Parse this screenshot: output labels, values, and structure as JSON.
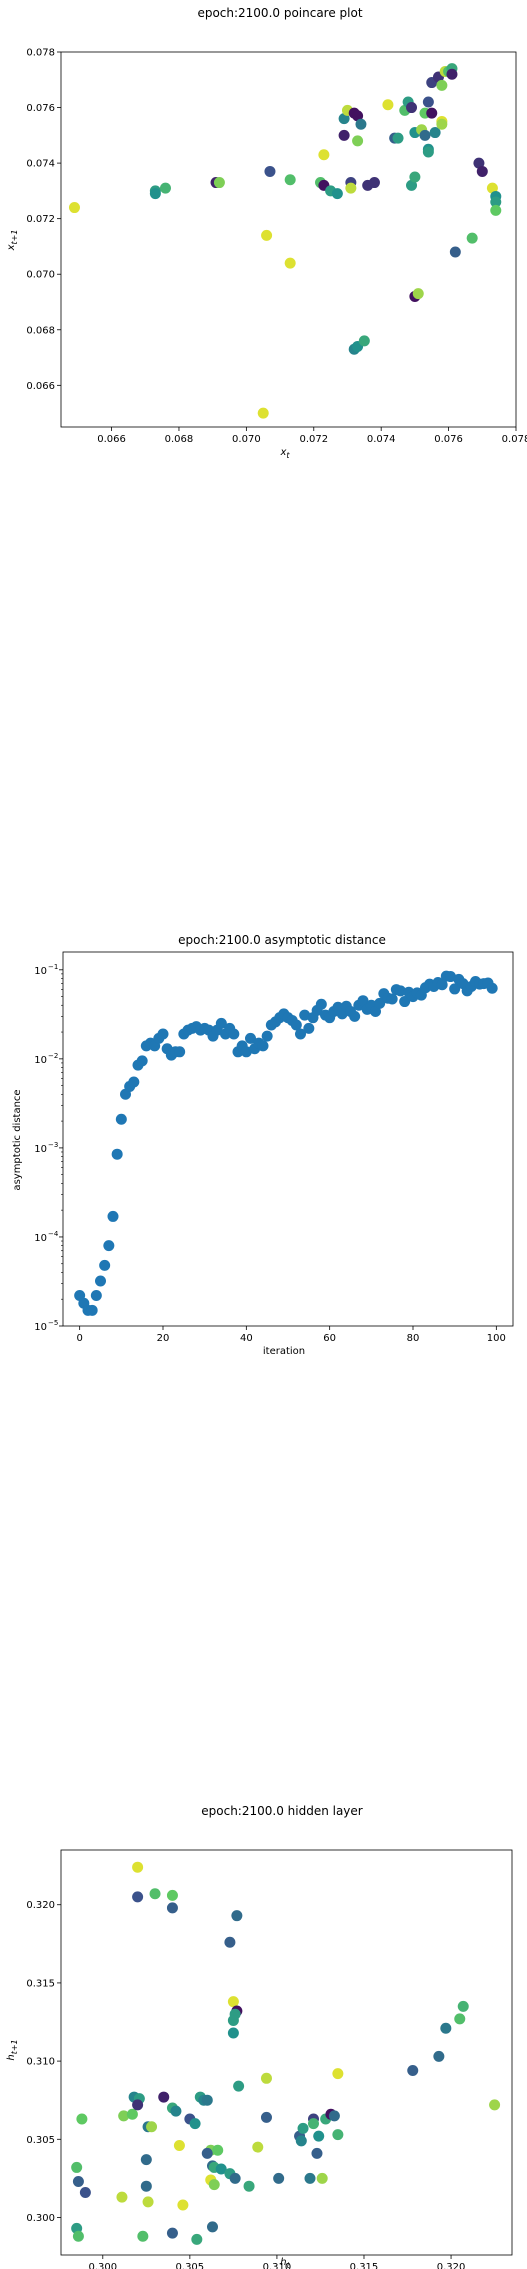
{
  "chart_data": [
    {
      "type": "scatter",
      "title": "epoch:2100.0 poincare plot",
      "xlabel": "x_t",
      "ylabel": "x_{t+1}",
      "xlim": [
        0.0645,
        0.078
      ],
      "ylim": [
        0.0645,
        0.078
      ],
      "xticks": [
        "0.066",
        "0.068",
        "0.070",
        "0.072",
        "0.074",
        "0.076",
        "0.078"
      ],
      "yticks": [
        "0.066",
        "0.068",
        "0.070",
        "0.072",
        "0.074",
        "0.076",
        "0.078"
      ],
      "xtick_values": [
        0.066,
        0.068,
        0.07,
        0.072,
        0.074,
        0.076,
        0.078
      ],
      "ytick_values": [
        0.066,
        0.068,
        0.07,
        0.072,
        0.074,
        0.076,
        0.078
      ],
      "colormap": "viridis",
      "points": [
        {
          "x": 0.0649,
          "y": 0.0724,
          "c": 0.95
        },
        {
          "x": 0.0673,
          "y": 0.073,
          "c": 0.55
        },
        {
          "x": 0.0673,
          "y": 0.0729,
          "c": 0.5
        },
        {
          "x": 0.0676,
          "y": 0.0731,
          "c": 0.65
        },
        {
          "x": 0.0691,
          "y": 0.0733,
          "c": 0.1
        },
        {
          "x": 0.0692,
          "y": 0.0733,
          "c": 0.8
        },
        {
          "x": 0.0705,
          "y": 0.065,
          "c": 0.95
        },
        {
          "x": 0.0706,
          "y": 0.0714,
          "c": 0.95
        },
        {
          "x": 0.0707,
          "y": 0.0737,
          "c": 0.25
        },
        {
          "x": 0.0713,
          "y": 0.0704,
          "c": 0.95
        },
        {
          "x": 0.0713,
          "y": 0.0734,
          "c": 0.7
        },
        {
          "x": 0.0722,
          "y": 0.0733,
          "c": 0.7
        },
        {
          "x": 0.0723,
          "y": 0.0743,
          "c": 0.95
        },
        {
          "x": 0.0723,
          "y": 0.0732,
          "c": 0.05
        },
        {
          "x": 0.0725,
          "y": 0.073,
          "c": 0.55
        },
        {
          "x": 0.0727,
          "y": 0.0729,
          "c": 0.5
        },
        {
          "x": 0.0729,
          "y": 0.075,
          "c": 0.1
        },
        {
          "x": 0.0729,
          "y": 0.0756,
          "c": 0.45
        },
        {
          "x": 0.073,
          "y": 0.0759,
          "c": 0.9
        },
        {
          "x": 0.0731,
          "y": 0.0733,
          "c": 0.2
        },
        {
          "x": 0.0731,
          "y": 0.0731,
          "c": 0.9
        },
        {
          "x": 0.0732,
          "y": 0.0758,
          "c": 0.05
        },
        {
          "x": 0.0732,
          "y": 0.0673,
          "c": 0.45
        },
        {
          "x": 0.0733,
          "y": 0.0757,
          "c": 0.05
        },
        {
          "x": 0.0733,
          "y": 0.0748,
          "c": 0.8
        },
        {
          "x": 0.0733,
          "y": 0.0674,
          "c": 0.5
        },
        {
          "x": 0.0734,
          "y": 0.0754,
          "c": 0.4
        },
        {
          "x": 0.0735,
          "y": 0.0676,
          "c": 0.6
        },
        {
          "x": 0.0736,
          "y": 0.0732,
          "c": 0.15
        },
        {
          "x": 0.0738,
          "y": 0.0733,
          "c": 0.15
        },
        {
          "x": 0.0742,
          "y": 0.0761,
          "c": 0.95
        },
        {
          "x": 0.0744,
          "y": 0.0749,
          "c": 0.3
        },
        {
          "x": 0.0745,
          "y": 0.0749,
          "c": 0.55
        },
        {
          "x": 0.0747,
          "y": 0.0759,
          "c": 0.7
        },
        {
          "x": 0.0748,
          "y": 0.0762,
          "c": 0.55
        },
        {
          "x": 0.0749,
          "y": 0.076,
          "c": 0.15
        },
        {
          "x": 0.0749,
          "y": 0.0732,
          "c": 0.55
        },
        {
          "x": 0.075,
          "y": 0.0735,
          "c": 0.6
        },
        {
          "x": 0.075,
          "y": 0.0751,
          "c": 0.5
        },
        {
          "x": 0.075,
          "y": 0.0692,
          "c": 0.05
        },
        {
          "x": 0.0751,
          "y": 0.0693,
          "c": 0.85
        },
        {
          "x": 0.0752,
          "y": 0.0752,
          "c": 0.85
        },
        {
          "x": 0.0753,
          "y": 0.0758,
          "c": 0.75
        },
        {
          "x": 0.0753,
          "y": 0.075,
          "c": 0.35
        },
        {
          "x": 0.0754,
          "y": 0.0762,
          "c": 0.25
        },
        {
          "x": 0.0754,
          "y": 0.0745,
          "c": 0.5
        },
        {
          "x": 0.0754,
          "y": 0.0744,
          "c": 0.55
        },
        {
          "x": 0.0755,
          "y": 0.0758,
          "c": 0.05
        },
        {
          "x": 0.0755,
          "y": 0.0769,
          "c": 0.2
        },
        {
          "x": 0.0756,
          "y": 0.0751,
          "c": 0.45
        },
        {
          "x": 0.0757,
          "y": 0.0771,
          "c": 0.15
        },
        {
          "x": 0.0758,
          "y": 0.0768,
          "c": 0.8
        },
        {
          "x": 0.0758,
          "y": 0.0755,
          "c": 0.95
        },
        {
          "x": 0.0758,
          "y": 0.0754,
          "c": 0.85
        },
        {
          "x": 0.0759,
          "y": 0.0773,
          "c": 0.9
        },
        {
          "x": 0.076,
          "y": 0.0773,
          "c": 0.7
        },
        {
          "x": 0.0761,
          "y": 0.0774,
          "c": 0.6
        },
        {
          "x": 0.0761,
          "y": 0.0772,
          "c": 0.1
        },
        {
          "x": 0.0762,
          "y": 0.0708,
          "c": 0.3
        },
        {
          "x": 0.0767,
          "y": 0.0713,
          "c": 0.7
        },
        {
          "x": 0.0769,
          "y": 0.074,
          "c": 0.15
        },
        {
          "x": 0.077,
          "y": 0.0737,
          "c": 0.1
        },
        {
          "x": 0.0773,
          "y": 0.0731,
          "c": 0.95
        },
        {
          "x": 0.0774,
          "y": 0.0728,
          "c": 0.5
        },
        {
          "x": 0.0774,
          "y": 0.0726,
          "c": 0.55
        },
        {
          "x": 0.0774,
          "y": 0.0723,
          "c": 0.75
        }
      ]
    },
    {
      "type": "scatter",
      "title": "epoch:2100.0 asymptotic distance",
      "xlabel": "iteration",
      "ylabel": "asymptotic distance",
      "yscale": "log",
      "xlim": [
        -4,
        104
      ],
      "ylim_log10": [
        -5,
        -0.8
      ],
      "xticks": [
        "0",
        "20",
        "40",
        "60",
        "80",
        "100"
      ],
      "xtick_values": [
        0,
        20,
        40,
        60,
        80,
        100
      ],
      "yticks": [
        {
          "base": "10",
          "exp": "−5",
          "v": -5
        },
        {
          "base": "10",
          "exp": "−4",
          "v": -4
        },
        {
          "base": "10",
          "exp": "−3",
          "v": -3
        },
        {
          "base": "10",
          "exp": "−2",
          "v": -2
        },
        {
          "base": "10",
          "exp": "−1",
          "v": -1
        }
      ],
      "color": "#1f77b4",
      "x": [
        0,
        1,
        2,
        3,
        4,
        5,
        6,
        7,
        8,
        9,
        10,
        11,
        12,
        13,
        14,
        15,
        16,
        17,
        18,
        19,
        20,
        21,
        22,
        23,
        24,
        25,
        26,
        27,
        28,
        29,
        30,
        31,
        32,
        33,
        34,
        35,
        36,
        37,
        38,
        39,
        40,
        41,
        42,
        43,
        44,
        45,
        46,
        47,
        48,
        49,
        50,
        51,
        52,
        53,
        54,
        55,
        56,
        57,
        58,
        59,
        60,
        61,
        62,
        63,
        64,
        65,
        66,
        67,
        68,
        69,
        70,
        71,
        72,
        73,
        74,
        75,
        76,
        77,
        78,
        79,
        80,
        81,
        82,
        83,
        84,
        85,
        86,
        87,
        88,
        89,
        90,
        91,
        92,
        93,
        94,
        95,
        96,
        97,
        98,
        99
      ],
      "y": [
        2.2e-05,
        1.8e-05,
        1.5e-05,
        1.5e-05,
        2.2e-05,
        3.2e-05,
        4.8e-05,
        8e-05,
        0.00017,
        0.00085,
        0.0021,
        0.004,
        0.0049,
        0.0055,
        0.0085,
        0.0095,
        0.014,
        0.015,
        0.014,
        0.017,
        0.019,
        0.013,
        0.011,
        0.012,
        0.012,
        0.019,
        0.021,
        0.022,
        0.023,
        0.021,
        0.022,
        0.021,
        0.018,
        0.021,
        0.025,
        0.019,
        0.022,
        0.019,
        0.012,
        0.014,
        0.012,
        0.017,
        0.013,
        0.015,
        0.014,
        0.018,
        0.024,
        0.026,
        0.029,
        0.032,
        0.029,
        0.027,
        0.024,
        0.019,
        0.031,
        0.022,
        0.029,
        0.035,
        0.041,
        0.031,
        0.029,
        0.034,
        0.038,
        0.032,
        0.039,
        0.034,
        0.03,
        0.04,
        0.045,
        0.036,
        0.04,
        0.034,
        0.042,
        0.054,
        0.048,
        0.047,
        0.06,
        0.058,
        0.044,
        0.056,
        0.05,
        0.055,
        0.052,
        0.063,
        0.069,
        0.065,
        0.072,
        0.068,
        0.085,
        0.084,
        0.061,
        0.078,
        0.07,
        0.058,
        0.065,
        0.074,
        0.069,
        0.07,
        0.071,
        0.062
      ],
      "y_display": [
        2.2e-05,
        1.8e-05,
        1.5e-05,
        1.5e-05,
        2.2e-05,
        3.2e-05,
        4.8e-05,
        8e-05,
        0.00017,
        0.00085,
        0.0021,
        0.004,
        0.0049,
        0.0055,
        0.0085,
        0.0095,
        0.014,
        0.015,
        0.014,
        0.017,
        0.019,
        0.013,
        0.011,
        0.012,
        0.012,
        0.019,
        0.021,
        0.022,
        0.023,
        0.021,
        0.022,
        0.021,
        0.018,
        0.021,
        0.025,
        0.019,
        0.022,
        0.019,
        0.012,
        0.014,
        0.012,
        0.017,
        0.013,
        0.015,
        0.014,
        0.018,
        0.024,
        0.026,
        0.029,
        0.032,
        0.029,
        0.027,
        0.024,
        0.019,
        0.031,
        0.022,
        0.029,
        0.035,
        0.041,
        0.031,
        0.029,
        0.034,
        0.038,
        0.032,
        0.039,
        0.034,
        0.03,
        0.04,
        0.045,
        0.036,
        0.04,
        0.034,
        0.042,
        0.054,
        0.048,
        0.047,
        0.06,
        0.058,
        0.044,
        0.056,
        0.05,
        0.055,
        0.052,
        0.063,
        0.069,
        0.065,
        0.072,
        0.068,
        0.085,
        0.084,
        0.061,
        0.078,
        0.07,
        0.058,
        0.065,
        0.074,
        0.069,
        0.07,
        0.071,
        0.062
      ]
    },
    {
      "type": "scatter",
      "title": "epoch:2100.0 hidden layer",
      "xlabel": "h_t",
      "ylabel": "h_{t+1}",
      "xlim": [
        0.2976,
        0.3235
      ],
      "ylim": [
        0.2976,
        0.3235
      ],
      "xticks": [
        "0.300",
        "0.305",
        "0.310",
        "0.315",
        "0.320"
      ],
      "xtick_values": [
        0.3,
        0.305,
        0.31,
        0.315,
        0.32
      ],
      "yticks": [
        "0.300",
        "0.305",
        "0.310",
        "0.315",
        "0.320"
      ],
      "ytick_values": [
        0.3,
        0.305,
        0.31,
        0.315,
        0.32
      ],
      "colormap": "viridis",
      "points": [
        {
          "x": 0.302,
          "y": 0.3224,
          "c": 0.95
        },
        {
          "x": 0.302,
          "y": 0.3205,
          "c": 0.25
        },
        {
          "x": 0.303,
          "y": 0.3207,
          "c": 0.7
        },
        {
          "x": 0.304,
          "y": 0.3206,
          "c": 0.75
        },
        {
          "x": 0.304,
          "y": 0.3198,
          "c": 0.3
        },
        {
          "x": 0.3077,
          "y": 0.3193,
          "c": 0.35
        },
        {
          "x": 0.3073,
          "y": 0.3176,
          "c": 0.3
        },
        {
          "x": 0.3075,
          "y": 0.3138,
          "c": 0.95
        },
        {
          "x": 0.3077,
          "y": 0.3132,
          "c": 0.05
        },
        {
          "x": 0.3076,
          "y": 0.313,
          "c": 0.55
        },
        {
          "x": 0.3075,
          "y": 0.3126,
          "c": 0.55
        },
        {
          "x": 0.3075,
          "y": 0.3118,
          "c": 0.5
        },
        {
          "x": 0.3078,
          "y": 0.3084,
          "c": 0.55
        },
        {
          "x": 0.3094,
          "y": 0.3089,
          "c": 0.9
        },
        {
          "x": 0.3135,
          "y": 0.3092,
          "c": 0.95
        },
        {
          "x": 0.3178,
          "y": 0.3094,
          "c": 0.3
        },
        {
          "x": 0.3193,
          "y": 0.3103,
          "c": 0.35
        },
        {
          "x": 0.3197,
          "y": 0.3121,
          "c": 0.4
        },
        {
          "x": 0.3205,
          "y": 0.3127,
          "c": 0.7
        },
        {
          "x": 0.3207,
          "y": 0.3135,
          "c": 0.65
        },
        {
          "x": 0.3225,
          "y": 0.3072,
          "c": 0.85
        },
        {
          "x": 0.2988,
          "y": 0.3063,
          "c": 0.75
        },
        {
          "x": 0.2985,
          "y": 0.3032,
          "c": 0.7
        },
        {
          "x": 0.2986,
          "y": 0.3023,
          "c": 0.3
        },
        {
          "x": 0.299,
          "y": 0.3016,
          "c": 0.25
        },
        {
          "x": 0.2985,
          "y": 0.2993,
          "c": 0.55
        },
        {
          "x": 0.2986,
          "y": 0.2988,
          "c": 0.7
        },
        {
          "x": 0.3012,
          "y": 0.3065,
          "c": 0.8
        },
        {
          "x": 0.3017,
          "y": 0.3066,
          "c": 0.75
        },
        {
          "x": 0.3018,
          "y": 0.3077,
          "c": 0.45
        },
        {
          "x": 0.3021,
          "y": 0.3076,
          "c": 0.55
        },
        {
          "x": 0.302,
          "y": 0.3072,
          "c": 0.15
        },
        {
          "x": 0.3025,
          "y": 0.3037,
          "c": 0.35
        },
        {
          "x": 0.3026,
          "y": 0.3058,
          "c": 0.4
        },
        {
          "x": 0.3028,
          "y": 0.3058,
          "c": 0.85
        },
        {
          "x": 0.3025,
          "y": 0.302,
          "c": 0.35
        },
        {
          "x": 0.3026,
          "y": 0.301,
          "c": 0.9
        },
        {
          "x": 0.3023,
          "y": 0.2988,
          "c": 0.7
        },
        {
          "x": 0.3011,
          "y": 0.3013,
          "c": 0.9
        },
        {
          "x": 0.3035,
          "y": 0.3077,
          "c": 0.1
        },
        {
          "x": 0.304,
          "y": 0.307,
          "c": 0.6
        },
        {
          "x": 0.3042,
          "y": 0.3068,
          "c": 0.45
        },
        {
          "x": 0.3044,
          "y": 0.3046,
          "c": 0.95
        },
        {
          "x": 0.304,
          "y": 0.299,
          "c": 0.3
        },
        {
          "x": 0.3046,
          "y": 0.3008,
          "c": 0.95
        },
        {
          "x": 0.305,
          "y": 0.3063,
          "c": 0.25
        },
        {
          "x": 0.3053,
          "y": 0.306,
          "c": 0.5
        },
        {
          "x": 0.3054,
          "y": 0.2986,
          "c": 0.6
        },
        {
          "x": 0.3056,
          "y": 0.3077,
          "c": 0.55
        },
        {
          "x": 0.3058,
          "y": 0.3075,
          "c": 0.45
        },
        {
          "x": 0.306,
          "y": 0.3075,
          "c": 0.4
        },
        {
          "x": 0.3062,
          "y": 0.3043,
          "c": 0.8
        },
        {
          "x": 0.3062,
          "y": 0.3024,
          "c": 0.95
        },
        {
          "x": 0.306,
          "y": 0.3041,
          "c": 0.3
        },
        {
          "x": 0.3063,
          "y": 0.3033,
          "c": 0.35
        },
        {
          "x": 0.3064,
          "y": 0.3032,
          "c": 0.6
        },
        {
          "x": 0.3064,
          "y": 0.3021,
          "c": 0.8
        },
        {
          "x": 0.3063,
          "y": 0.2994,
          "c": 0.35
        },
        {
          "x": 0.3066,
          "y": 0.3043,
          "c": 0.75
        },
        {
          "x": 0.3068,
          "y": 0.3031,
          "c": 0.5
        },
        {
          "x": 0.3073,
          "y": 0.3028,
          "c": 0.55
        },
        {
          "x": 0.3076,
          "y": 0.3025,
          "c": 0.35
        },
        {
          "x": 0.3084,
          "y": 0.302,
          "c": 0.6
        },
        {
          "x": 0.3089,
          "y": 0.3045,
          "c": 0.9
        },
        {
          "x": 0.3094,
          "y": 0.3064,
          "c": 0.3
        },
        {
          "x": 0.3101,
          "y": 0.3025,
          "c": 0.35
        },
        {
          "x": 0.3113,
          "y": 0.3052,
          "c": 0.3
        },
        {
          "x": 0.3114,
          "y": 0.3049,
          "c": 0.45
        },
        {
          "x": 0.3115,
          "y": 0.3057,
          "c": 0.55
        },
        {
          "x": 0.3119,
          "y": 0.3025,
          "c": 0.4
        },
        {
          "x": 0.3121,
          "y": 0.3063,
          "c": 0.2
        },
        {
          "x": 0.3121,
          "y": 0.306,
          "c": 0.65
        },
        {
          "x": 0.3123,
          "y": 0.3041,
          "c": 0.3
        },
        {
          "x": 0.3124,
          "y": 0.3052,
          "c": 0.5
        },
        {
          "x": 0.3126,
          "y": 0.3025,
          "c": 0.85
        },
        {
          "x": 0.3128,
          "y": 0.3063,
          "c": 0.6
        },
        {
          "x": 0.3131,
          "y": 0.3066,
          "c": 0.05
        },
        {
          "x": 0.3133,
          "y": 0.3065,
          "c": 0.35
        },
        {
          "x": 0.3135,
          "y": 0.3053,
          "c": 0.65
        }
      ]
    }
  ]
}
